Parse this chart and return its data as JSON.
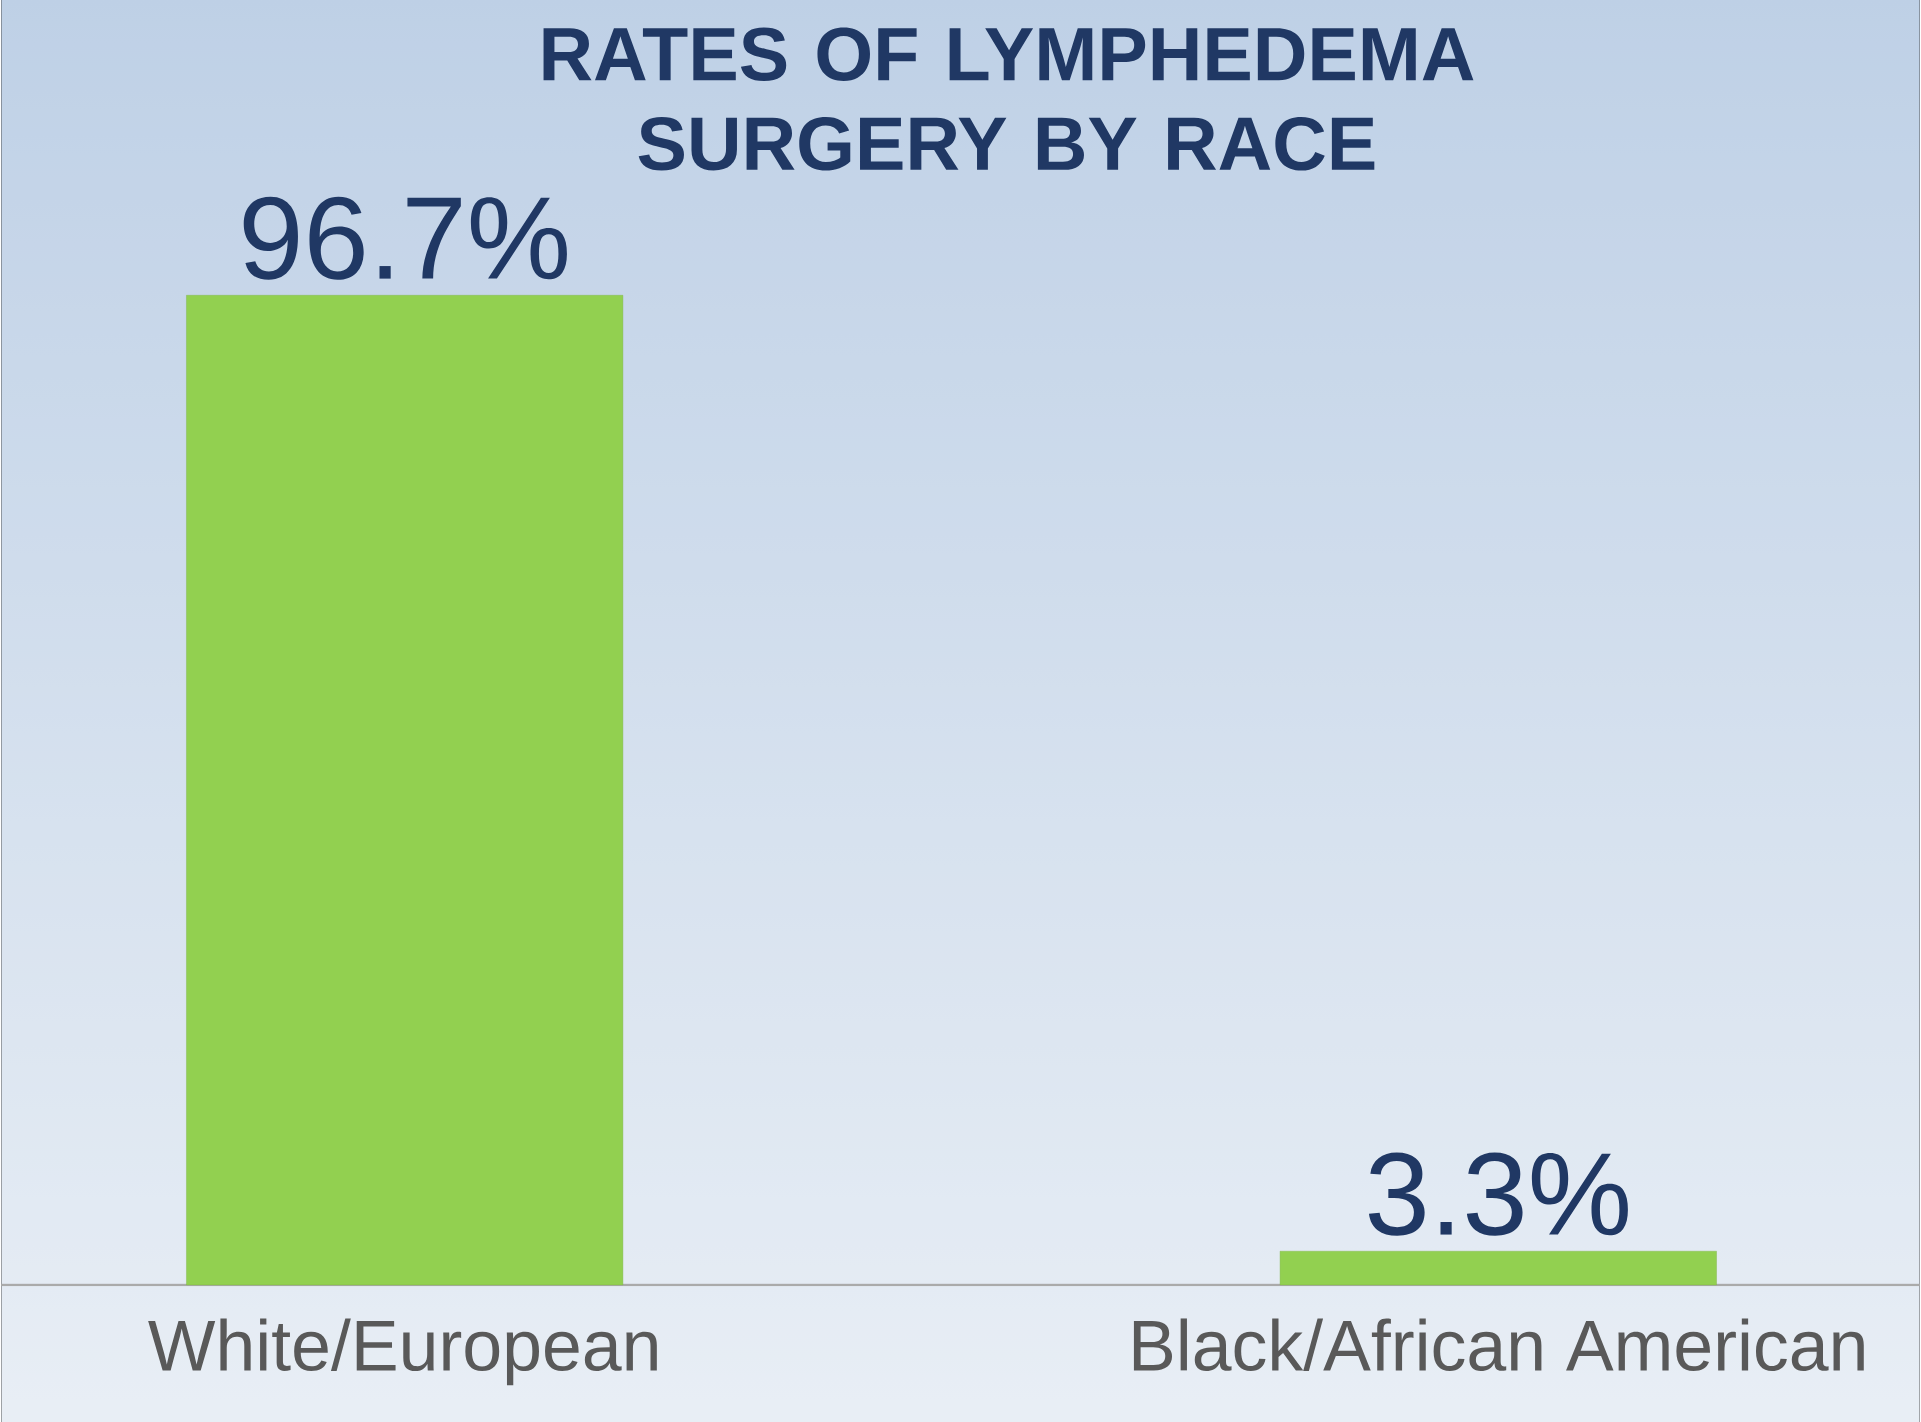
{
  "chart_data": {
    "type": "bar",
    "title": "RATES OF LYMPHEDEMA SURGERY BY RACE",
    "categories": [
      "White/European",
      "Black/African American"
    ],
    "values": [
      96.7,
      3.3
    ],
    "value_labels": [
      "96.7%",
      "3.3%"
    ],
    "color": "#92d050",
    "tick_labels": "x"
  }
}
